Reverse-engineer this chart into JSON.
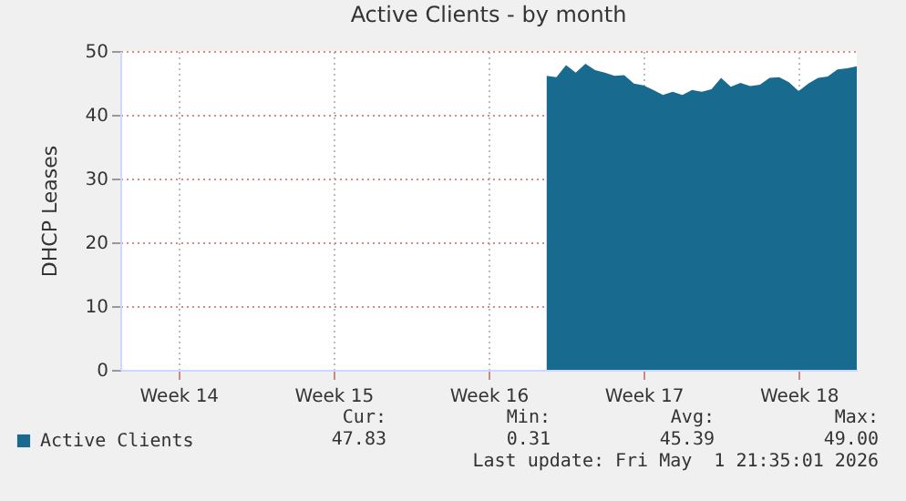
{
  "chart_data": {
    "type": "area",
    "title": "Active Clients - by month",
    "ylabel": "DHCP Leases",
    "categories": [
      null,
      null,
      null,
      null,
      null,
      null,
      "Week 14",
      null,
      null,
      null,
      null,
      null,
      null,
      null,
      null,
      null,
      null,
      null,
      null,
      null,
      null,
      null,
      "Week 15",
      null,
      null,
      null,
      null,
      null,
      null,
      null,
      null,
      null,
      null,
      null,
      null,
      null,
      null,
      null,
      "Week 16",
      null,
      null,
      null,
      null,
      null,
      null,
      null,
      null,
      null,
      null,
      null,
      null,
      null,
      null,
      null,
      "Week 17",
      null,
      null,
      null,
      null,
      null,
      null,
      null,
      null,
      null,
      null,
      null,
      null,
      null,
      null,
      null,
      "Week 18",
      null,
      null,
      null,
      null,
      null,
      null
    ],
    "series": [
      {
        "name": "Active Clients",
        "color": "#186a8e",
        "values": [
          null,
          null,
          null,
          null,
          null,
          null,
          null,
          null,
          null,
          null,
          null,
          null,
          null,
          null,
          null,
          null,
          null,
          null,
          null,
          null,
          null,
          null,
          null,
          null,
          null,
          null,
          null,
          null,
          null,
          null,
          null,
          null,
          null,
          null,
          null,
          null,
          null,
          null,
          null,
          null,
          null,
          null,
          null,
          null,
          46.1,
          45.9,
          47.8,
          46.6,
          48.0,
          47.0,
          46.6,
          46.1,
          46.2,
          44.9,
          44.6,
          43.9,
          43.1,
          43.6,
          43.1,
          43.9,
          43.6,
          44.0,
          45.8,
          44.4,
          45.0,
          44.5,
          44.7,
          45.8,
          45.9,
          45.1,
          43.7,
          44.9,
          45.8,
          46.0,
          47.1,
          47.3,
          47.6
        ]
      }
    ],
    "ylim": [
      0,
      50
    ],
    "yticks": [
      0,
      10,
      20,
      30,
      40,
      50
    ],
    "grid": true,
    "legend": "bottom left",
    "annotations": [
      "Cur:",
      "Min:",
      "Avg:",
      "Max:",
      "47.83",
      "0.31",
      "45.39",
      "49.00",
      "Last update: Fri May  1 21:35:01 2026"
    ]
  }
}
